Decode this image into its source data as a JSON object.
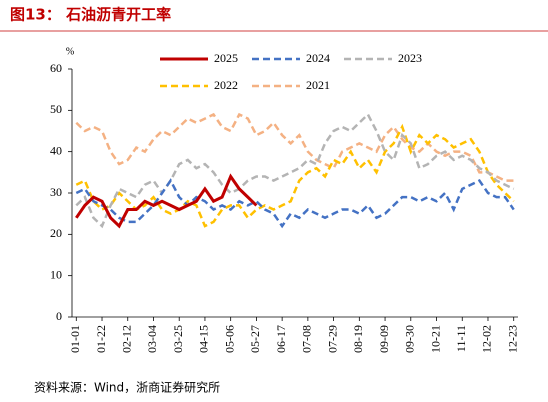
{
  "chart_data": {
    "type": "line",
    "title": "图13：  石油沥青开工率",
    "ylabel": "%",
    "source": "资料来源：Wind，浙商证券研究所",
    "categories": [
      "01-01",
      null,
      null,
      "01-22",
      null,
      null,
      "02-12",
      null,
      null,
      "03-04",
      null,
      null,
      "03-25",
      null,
      null,
      "04-15",
      null,
      null,
      "05-06",
      null,
      null,
      "05-27",
      null,
      null,
      "06-17",
      null,
      null,
      "07-08",
      null,
      null,
      "07-29",
      null,
      null,
      "08-19",
      null,
      null,
      "09-09",
      null,
      null,
      "09-30",
      null,
      null,
      "10-21",
      null,
      null,
      "11-11",
      null,
      null,
      "12-02",
      null,
      null,
      "12-23"
    ],
    "series": [
      {
        "name": "2025",
        "color": "#c00000",
        "line_style": "solid",
        "values": [
          24,
          27,
          29,
          28,
          24,
          22,
          26,
          26,
          28,
          27,
          28,
          27,
          26,
          27,
          28,
          31,
          28,
          29,
          34,
          31,
          29,
          27,
          null,
          null,
          null,
          null,
          null,
          null,
          null,
          null,
          null,
          null,
          null,
          null,
          null,
          null,
          null,
          null,
          null,
          null,
          null,
          null,
          null,
          null,
          null,
          null,
          null,
          null,
          null,
          null,
          null,
          null
        ]
      },
      {
        "name": "2024",
        "color": "#4472c4",
        "line_style": "dashed",
        "values": [
          30,
          31,
          28,
          27,
          26,
          24,
          23,
          23,
          25,
          27,
          30,
          33,
          29,
          27,
          29,
          28,
          26,
          27,
          26,
          28,
          27,
          28,
          26,
          25,
          22,
          25,
          24,
          26,
          25,
          24,
          25,
          26,
          26,
          25,
          27,
          24,
          25,
          27,
          29,
          29,
          28,
          29,
          28,
          30,
          26,
          31,
          32,
          33,
          30,
          29,
          29,
          26
        ]
      },
      {
        "name": "2023",
        "color": "#b4b4b4",
        "line_style": "dashed",
        "values": [
          27,
          29,
          24,
          22,
          27,
          31,
          30,
          29,
          32,
          33,
          30,
          33,
          37,
          38,
          36,
          37,
          35,
          32,
          30,
          31,
          33,
          34,
          34,
          33,
          34,
          35,
          36,
          38,
          37,
          42,
          45,
          46,
          45,
          47,
          49,
          45,
          40,
          38,
          44,
          42,
          36,
          37,
          39,
          40,
          38,
          39,
          38,
          36,
          35,
          33,
          32,
          31
        ]
      },
      {
        "name": "2022",
        "color": "#ffc000",
        "line_style": "dashed",
        "values": [
          32,
          33,
          28,
          26,
          27,
          30,
          28,
          26,
          27,
          29,
          26,
          25,
          26,
          28,
          27,
          22,
          23,
          26,
          27,
          27,
          24,
          26,
          27,
          26,
          27,
          28,
          33,
          35,
          36,
          34,
          38,
          37,
          40,
          36,
          38,
          35,
          40,
          42,
          46,
          40,
          44,
          42,
          44,
          43,
          41,
          42,
          43,
          40,
          35,
          32,
          30,
          28
        ]
      },
      {
        "name": "2021",
        "color": "#f4b183",
        "line_style": "dashed",
        "values": [
          47,
          45,
          46,
          45,
          40,
          37,
          38,
          41,
          40,
          43,
          45,
          44,
          46,
          48,
          47,
          48,
          49,
          46,
          45,
          49,
          48,
          44,
          45,
          47,
          44,
          42,
          44,
          40,
          38,
          37,
          36,
          40,
          41,
          42,
          41,
          40,
          44,
          46,
          43,
          41,
          40,
          42,
          40,
          39,
          40,
          40,
          39,
          35,
          35,
          34,
          33,
          33
        ]
      }
    ],
    "ylim": [
      0,
      60
    ],
    "yticks": [
      0,
      10,
      20,
      30,
      40,
      50,
      60
    ]
  }
}
